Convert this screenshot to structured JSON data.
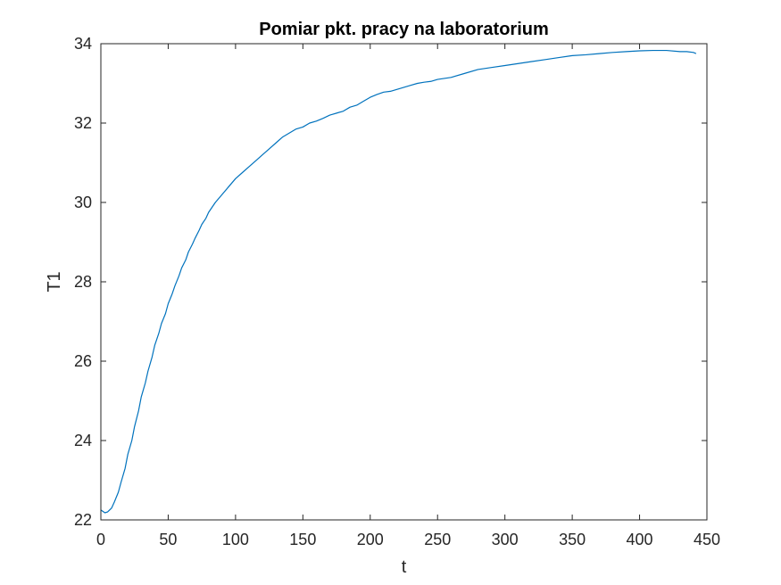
{
  "chart_data": {
    "type": "line",
    "title": "Pomiar pkt. pracy na laboratorium",
    "xlabel": "t",
    "ylabel": "T1",
    "xlim": [
      0,
      450
    ],
    "ylim": [
      22,
      34
    ],
    "xticks": [
      0,
      50,
      100,
      150,
      200,
      250,
      300,
      350,
      400,
      450
    ],
    "yticks": [
      22,
      24,
      26,
      28,
      30,
      32,
      34
    ],
    "grid": false,
    "legend": "none",
    "colors": {
      "line": "#0072BD",
      "axes": "#262626",
      "background": "#ffffff"
    },
    "series": [
      {
        "x": [
          0,
          3,
          5,
          8,
          10,
          13,
          15,
          18,
          20,
          23,
          25,
          28,
          30,
          33,
          35,
          38,
          40,
          43,
          45,
          48,
          50,
          53,
          55,
          58,
          60,
          63,
          65,
          68,
          70,
          73,
          75,
          78,
          80,
          85,
          90,
          95,
          100,
          105,
          110,
          115,
          120,
          125,
          130,
          135,
          140,
          145,
          150,
          155,
          160,
          165,
          170,
          175,
          180,
          185,
          190,
          195,
          200,
          205,
          210,
          215,
          220,
          225,
          230,
          235,
          240,
          245,
          250,
          260,
          270,
          280,
          290,
          300,
          310,
          320,
          330,
          340,
          350,
          360,
          370,
          380,
          390,
          400,
          410,
          420,
          430,
          435,
          440,
          442
        ],
        "y": [
          22.25,
          22.18,
          22.2,
          22.3,
          22.45,
          22.7,
          22.95,
          23.3,
          23.65,
          24.0,
          24.35,
          24.75,
          25.1,
          25.45,
          25.75,
          26.1,
          26.4,
          26.7,
          26.95,
          27.2,
          27.45,
          27.7,
          27.9,
          28.15,
          28.35,
          28.55,
          28.75,
          28.95,
          29.1,
          29.3,
          29.45,
          29.6,
          29.75,
          30.0,
          30.2,
          30.4,
          30.6,
          30.75,
          30.9,
          31.05,
          31.2,
          31.35,
          31.5,
          31.65,
          31.75,
          31.85,
          31.9,
          32.0,
          32.05,
          32.12,
          32.2,
          32.25,
          32.3,
          32.4,
          32.45,
          32.55,
          32.65,
          32.72,
          32.78,
          32.8,
          32.85,
          32.9,
          32.95,
          33.0,
          33.03,
          33.05,
          33.1,
          33.15,
          33.25,
          33.35,
          33.4,
          33.45,
          33.5,
          33.55,
          33.6,
          33.65,
          33.7,
          33.72,
          33.75,
          33.78,
          33.8,
          33.82,
          33.83,
          33.83,
          33.8,
          33.8,
          33.78,
          33.75
        ]
      }
    ]
  }
}
